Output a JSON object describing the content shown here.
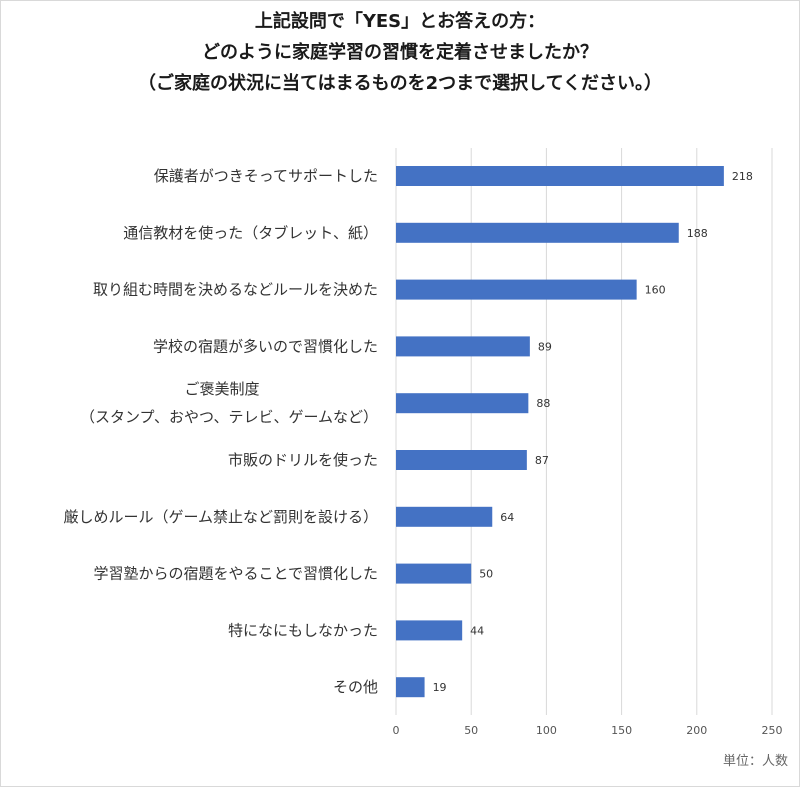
{
  "chart_data": {
    "type": "bar",
    "orientation": "horizontal",
    "title_lines": [
      "上記設問で「YES」とお答えの方：",
      "どのように家庭学習の習慣を定着させましたか？",
      "（ご家庭の状況に当てはまるものを2つまで選択してください。）"
    ],
    "categories": [
      [
        "保護者がつきそってサポートした"
      ],
      [
        "通信教材を使った（タブレット、紙）"
      ],
      [
        "取り組む時間を決めるなどルールを決めた"
      ],
      [
        "学校の宿題が多いので習慣化した"
      ],
      [
        "ご褒美制度",
        "（スタンプ、おやつ、テレビ、ゲームなど）"
      ],
      [
        "市販のドリルを使った"
      ],
      [
        "厳しめルール（ゲーム禁止など罰則を設ける）"
      ],
      [
        "学習塾からの宿題をやることで習慣化した"
      ],
      [
        "特になにもしなかった"
      ],
      [
        "その他"
      ]
    ],
    "values": [
      218,
      188,
      160,
      89,
      88,
      87,
      64,
      50,
      44,
      19
    ],
    "xlim": [
      0,
      250
    ],
    "xticks": [
      0,
      50,
      100,
      150,
      200,
      250
    ],
    "grid": true,
    "bar_color": "#4472c4",
    "unit_note": "単位：人数"
  }
}
